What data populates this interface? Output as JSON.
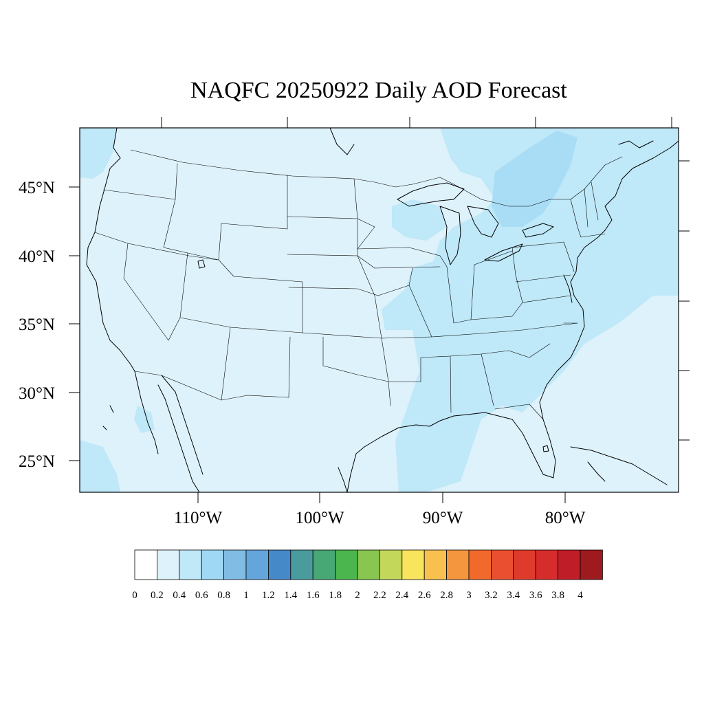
{
  "title": "NAQFC 20250922 Daily AOD Forecast",
  "map": {
    "region": "Contiguous United States",
    "lon_range": [
      -119,
      -70
    ],
    "lat_range": [
      22.8,
      49.6
    ],
    "lat_labels": [
      "45°N",
      "40°N",
      "35°N",
      "30°N",
      "25°N"
    ],
    "lat_values": [
      45,
      40,
      35,
      30,
      25
    ],
    "lon_labels": [
      "110°W",
      "100°W",
      "90°W",
      "80°W"
    ],
    "lon_values": [
      -110,
      -100,
      -90,
      -80
    ],
    "colors": {
      "background_aod": "#def2fb",
      "haze_aod": "#bfe8f8",
      "plume_aod": "#a9dcf5",
      "boundary": "#000000"
    }
  },
  "colorbar": {
    "labels": [
      "0",
      "0.2",
      "0.4",
      "0.6",
      "0.8",
      "1",
      "1.2",
      "1.4",
      "1.6",
      "1.8",
      "2",
      "2.2",
      "2.4",
      "2.6",
      "2.8",
      "3",
      "3.2",
      "3.4",
      "3.6",
      "3.8",
      "4"
    ],
    "colors": [
      "#ffffff",
      "#def2fb",
      "#bfe8f8",
      "#9fd8f5",
      "#80bce4",
      "#64a6dc",
      "#4589c9",
      "#4a9b9e",
      "#47a875",
      "#4bb64d",
      "#88c650",
      "#c3d85b",
      "#f8e45d",
      "#f8c04e",
      "#f4963e",
      "#f2692c",
      "#ea5030",
      "#df3b2c",
      "#d72c2c",
      "#bf1e28",
      "#9e1a1f"
    ]
  }
}
